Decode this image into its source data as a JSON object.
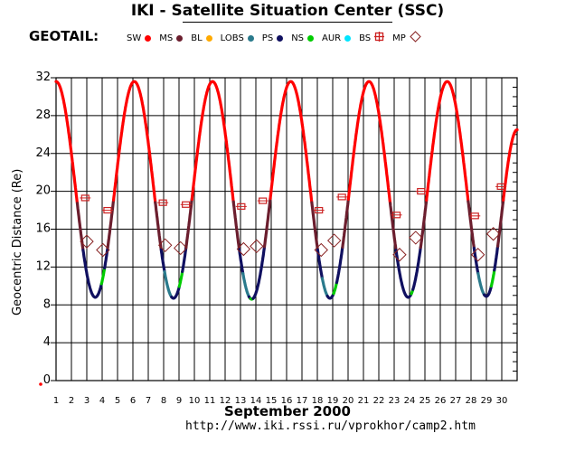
{
  "header": {
    "title": "IKI - Satellite Situation Center (SSC)",
    "spacecraft": "GEOTAIL:",
    "url": "http://www.iki.rssi.ru/vprokhor/camp2.htm"
  },
  "legend": [
    {
      "label": "SW",
      "color": "#ff0000",
      "shape": "dot",
      "icon": "red-dot-icon"
    },
    {
      "label": "MS",
      "color": "#6b1e2e",
      "shape": "dot",
      "icon": "maroon-dot-icon"
    },
    {
      "label": "BL",
      "color": "#ffaa00",
      "shape": "dot",
      "icon": "orange-dot-icon"
    },
    {
      "label": "LOBS",
      "color": "#2a7a8c",
      "shape": "dot",
      "icon": "teal-dot-icon"
    },
    {
      "label": "PS",
      "color": "#101060",
      "shape": "dot",
      "icon": "navy-dot-icon"
    },
    {
      "label": "NS",
      "color": "#00cc00",
      "shape": "dot",
      "icon": "green-dot-icon"
    },
    {
      "label": "AUR",
      "color": "#00e5ff",
      "shape": "dot",
      "icon": "cyan-dot-icon"
    },
    {
      "label": "BS",
      "color": "#cc2222",
      "shape": "square-cross",
      "icon": "red-square-cross-icon"
    },
    {
      "label": "MP",
      "color": "#882222",
      "shape": "diamond",
      "icon": "diamond-icon"
    }
  ],
  "chart_data": {
    "type": "line",
    "xlabel": "September    2000",
    "ylabel": "Geocentric Distance (Re)",
    "x_ticks": [
      1,
      2,
      3,
      4,
      5,
      6,
      7,
      8,
      9,
      10,
      11,
      12,
      13,
      14,
      15,
      16,
      17,
      18,
      19,
      20,
      21,
      22,
      23,
      24,
      25,
      26,
      27,
      28,
      29,
      30
    ],
    "xlim": [
      1,
      31
    ],
    "y_ticks": [
      0,
      4,
      8,
      12,
      16,
      20,
      24,
      28,
      32
    ],
    "ylim": [
      0,
      32
    ],
    "grid": true,
    "orbit": {
      "period_days": 5.09,
      "apogee_re": 31.6,
      "apogee_days": [
        1,
        6.09,
        11.18,
        16.27,
        21.36,
        26.45
      ],
      "perigees": [
        {
          "day": 3.55,
          "re": 8.8
        },
        {
          "day": 8.64,
          "re": 8.7
        },
        {
          "day": 13.73,
          "re": 8.6
        },
        {
          "day": 18.82,
          "re": 8.7
        },
        {
          "day": 23.91,
          "re": 8.8
        },
        {
          "day": 29.0,
          "re": 8.9
        }
      ],
      "end": {
        "day": 31.0,
        "re": 26.5
      }
    },
    "regions": {
      "colors": {
        "SW": "#ff0000",
        "MS": "#6b1e2e",
        "LOBS": "#2a7a8c",
        "PS": "#101060",
        "NS": "#00cc00"
      },
      "bands": [
        {
          "region": "SW",
          "above_re": 19
        },
        {
          "region": "MS",
          "from_re": 14,
          "to_re": 19
        },
        {
          "region": "PS",
          "below_re": 14
        }
      ],
      "lobe_segments": [
        {
          "from": 8.05,
          "to": 8.5
        },
        {
          "from": 13.15,
          "to": 13.55
        },
        {
          "from": 18.3,
          "to": 18.65
        },
        {
          "from": 28.45,
          "to": 28.85
        }
      ],
      "ns_segments": [
        {
          "from": 3.95,
          "to": 4.15
        },
        {
          "from": 9.0,
          "to": 9.2
        },
        {
          "from": 13.65,
          "to": 13.8
        },
        {
          "from": 19.05,
          "to": 19.25
        },
        {
          "from": 24.1,
          "to": 24.2
        },
        {
          "from": 29.3,
          "to": 29.5
        }
      ]
    },
    "bow_shock": [
      {
        "day": 2.9,
        "re": 19.3
      },
      {
        "day": 4.35,
        "re": 18.0
      },
      {
        "day": 7.95,
        "re": 18.8
      },
      {
        "day": 9.45,
        "re": 18.6
      },
      {
        "day": 13.05,
        "re": 18.4
      },
      {
        "day": 14.45,
        "re": 19.0
      },
      {
        "day": 18.1,
        "re": 18.0
      },
      {
        "day": 19.6,
        "re": 19.4
      },
      {
        "day": 23.15,
        "re": 17.5
      },
      {
        "day": 24.75,
        "re": 20.0
      },
      {
        "day": 28.25,
        "re": 17.4
      },
      {
        "day": 29.95,
        "re": 20.5
      }
    ],
    "magnetopause": [
      {
        "day": 3.0,
        "re": 14.7
      },
      {
        "day": 4.05,
        "re": 13.8
      },
      {
        "day": 8.1,
        "re": 14.3
      },
      {
        "day": 9.1,
        "re": 14.0
      },
      {
        "day": 13.2,
        "re": 13.9
      },
      {
        "day": 14.05,
        "re": 14.2
      },
      {
        "day": 18.25,
        "re": 13.8
      },
      {
        "day": 19.1,
        "re": 14.8
      },
      {
        "day": 23.35,
        "re": 13.3
      },
      {
        "day": 24.4,
        "re": 15.1
      },
      {
        "day": 28.45,
        "re": 13.3
      },
      {
        "day": 29.45,
        "re": 15.5
      }
    ]
  }
}
